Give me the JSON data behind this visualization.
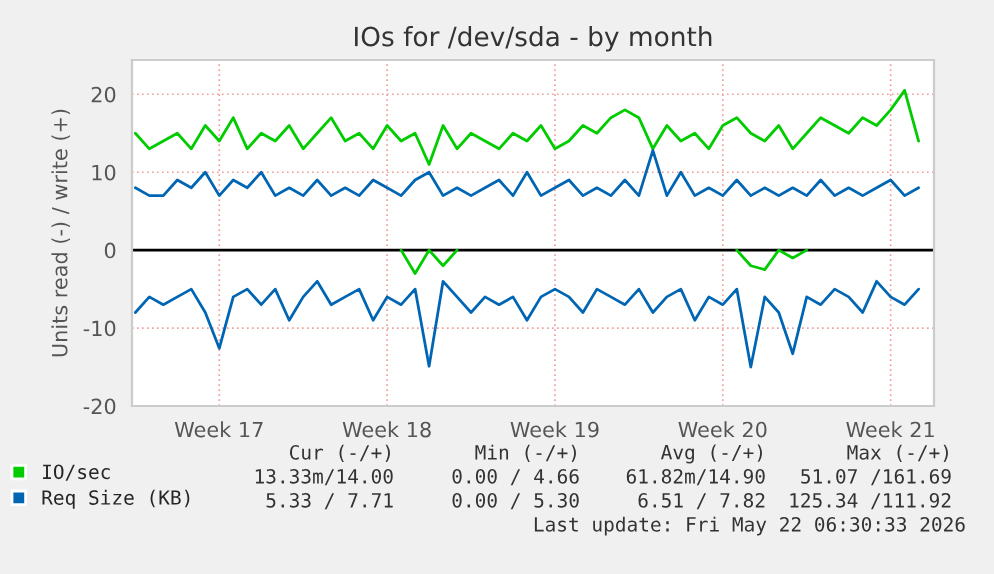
{
  "chart_data": {
    "type": "line",
    "title": "IOs for /dev/sda - by month",
    "ylabel": "Units read (-) / write (+)",
    "categories": [
      null,
      null,
      null,
      null,
      null,
      null,
      "Week 17",
      null,
      null,
      null,
      null,
      null,
      null,
      null,
      null,
      null,
      null,
      null,
      "Week 18",
      null,
      null,
      null,
      null,
      null,
      null,
      null,
      null,
      null,
      null,
      null,
      "Week 19",
      null,
      null,
      null,
      null,
      null,
      null,
      null,
      null,
      null,
      null,
      null,
      "Week 20",
      null,
      null,
      null,
      null,
      null,
      null,
      null,
      null,
      null,
      null,
      null,
      "Week 21",
      null,
      null
    ],
    "series": [
      {
        "name": "IO/sec",
        "color": "#00cc00",
        "values": [
          15,
          13,
          14,
          15,
          13,
          16,
          14,
          17,
          13,
          15,
          14,
          16,
          13,
          15,
          17,
          14,
          15,
          13,
          16,
          14,
          15,
          11,
          16,
          13,
          15,
          14,
          13,
          15,
          14,
          16,
          13,
          14,
          16,
          15,
          17,
          18,
          17,
          13,
          16,
          14,
          15,
          13,
          16,
          17,
          15,
          14,
          16,
          13,
          15,
          17,
          16,
          15,
          17,
          16,
          18,
          20.5,
          14
        ]
      },
      {
        "color": "#00cc00",
        "values": [
          null,
          null,
          null,
          null,
          null,
          null,
          null,
          null,
          null,
          null,
          null,
          null,
          null,
          null,
          null,
          null,
          null,
          null,
          null,
          0,
          -3,
          0,
          -2,
          0,
          null,
          null,
          null,
          null,
          null,
          null,
          null,
          null,
          null,
          null,
          null,
          null,
          null,
          null,
          null,
          null,
          null,
          null,
          null,
          0,
          -2,
          -2.5,
          0,
          -1,
          0,
          null,
          null,
          null,
          null,
          null,
          null,
          null,
          null
        ]
      },
      {
        "name": "Req Size (KB)",
        "color": "#0066b3",
        "values": [
          8,
          7,
          7,
          9,
          8,
          10,
          7,
          9,
          8,
          10,
          7,
          8,
          7,
          9,
          7,
          8,
          7,
          9,
          8,
          7,
          9,
          10,
          7,
          8,
          7,
          8,
          9,
          7,
          10,
          7,
          8,
          9,
          7,
          8,
          7,
          9,
          7,
          12.8,
          7,
          10,
          7,
          8,
          7,
          9,
          7,
          8,
          7,
          8,
          7,
          9,
          7,
          8,
          7,
          8,
          9,
          7,
          8
        ]
      },
      {
        "color": "#0066b3",
        "values": [
          -8,
          -6,
          -7,
          -6,
          -5,
          -8,
          -12.6,
          -6,
          -5,
          -7,
          -5,
          -9,
          -6,
          -4,
          -7,
          -6,
          -5,
          -9,
          -6,
          -7,
          -5,
          -14.9,
          -4,
          -6,
          -8,
          -6,
          -7,
          -6,
          -9,
          -6,
          -5,
          -6,
          -8,
          -5,
          -6,
          -7,
          -5,
          -8,
          -6,
          -5,
          -9,
          -6,
          -7,
          -5,
          -15,
          -6,
          -8,
          -13.3,
          -6,
          -7,
          -5,
          -6,
          -8,
          -4,
          -6,
          -7,
          -5
        ]
      }
    ],
    "ylim": [
      -20,
      24.4
    ],
    "yticks": [
      -20,
      -10,
      0,
      10,
      20
    ],
    "ref_lines": [
      {
        "axis": "y",
        "value": 0,
        "color": "#000000"
      }
    ],
    "grid": true,
    "legend": "bottom left",
    "marker": "none",
    "line_style": "solid",
    "annotations": [
      "Cur (-/+)",
      "Min (-/+)",
      "Avg (-/+)",
      "Max (-/+)",
      "13.33m/14.00",
      "0.00 / 4.66",
      "61.82m/14.90",
      "51.07 /161.69",
      "5.33 / 7.71",
      "0.00 / 5.30",
      "6.51 / 7.82",
      "125.34 /111.92",
      "Last update: Fri May 22 06:30:33 2026"
    ]
  }
}
